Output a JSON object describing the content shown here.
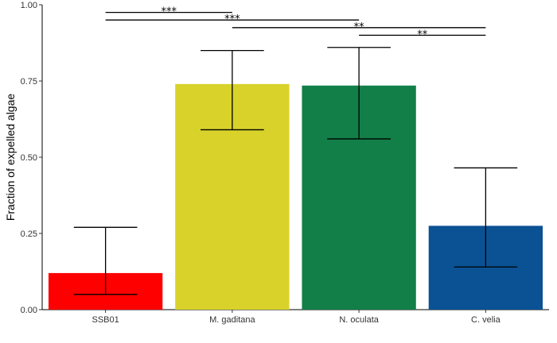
{
  "chart_data": {
    "type": "bar",
    "title": "",
    "xlabel": "",
    "ylabel": "Fraction of expelled algae",
    "ylim": [
      0,
      1
    ],
    "yticks": [
      "0.00",
      "0.25",
      "0.50",
      "0.75",
      "1.00"
    ],
    "ytick_values": [
      0,
      0.25,
      0.5,
      0.75,
      1
    ],
    "grid": false,
    "categories": [
      "SSB01",
      "M. gaditana",
      "N. oculata",
      "C. velia"
    ],
    "values": [
      0.12,
      0.74,
      0.735,
      0.275
    ],
    "error_low": [
      0.05,
      0.59,
      0.56,
      0.14
    ],
    "error_high": [
      0.27,
      0.85,
      0.86,
      0.465
    ],
    "colors": [
      "#ff0000",
      "#d8d22a",
      "#127f48",
      "#0a5294"
    ],
    "significance": [
      {
        "from": 0,
        "to": 1,
        "label": "***",
        "y": 0.975
      },
      {
        "from": 0,
        "to": 2,
        "label": "***",
        "y": 0.95
      },
      {
        "from": 1,
        "to": 3,
        "label": "**",
        "y": 0.925
      },
      {
        "from": 2,
        "to": 3,
        "label": "**",
        "y": 0.9
      }
    ]
  }
}
